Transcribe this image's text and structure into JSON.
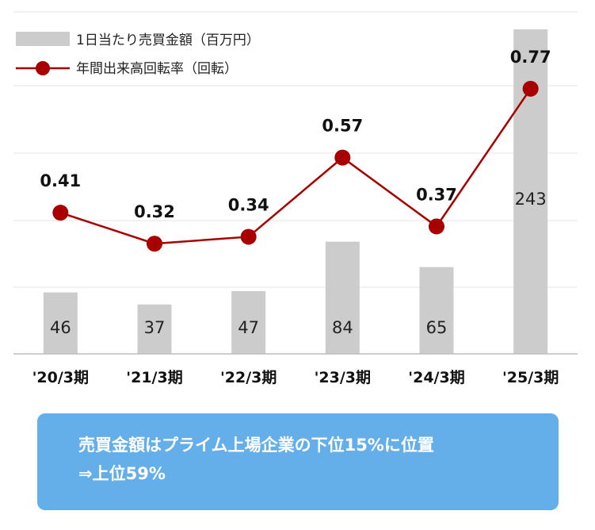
{
  "chart_data": {
    "type": "bar+line",
    "categories": [
      "'20/3期",
      "'21/3期",
      "'22/3期",
      "'23/3期",
      "'24/3期",
      "'25/3期"
    ],
    "series": [
      {
        "name": "1日当たり売買金額（百万円）",
        "type": "bar",
        "values": [
          46,
          37,
          47,
          84,
          65,
          243
        ],
        "axis": "left"
      },
      {
        "name": "年間出来高回転率（回転）",
        "type": "line",
        "values": [
          0.41,
          0.32,
          0.34,
          0.57,
          0.37,
          0.77
        ],
        "value_labels": [
          "0.41",
          "0.32",
          "0.34",
          "0.57",
          "0.37",
          "0.77"
        ],
        "axis": "right"
      }
    ],
    "bar_axis_range": [
      0,
      243
    ],
    "line_axis_range": [
      0,
      1
    ],
    "grid": true,
    "legend": "top-left",
    "colors": {
      "bar": "#cccccc",
      "line": "#a80000",
      "grid": "#e6e6e6"
    }
  },
  "callout": {
    "line1": "売買金額はプライム上場企業の下位15%に位置",
    "line2": "⇒上位59%",
    "bg_color": "#64aeea"
  }
}
